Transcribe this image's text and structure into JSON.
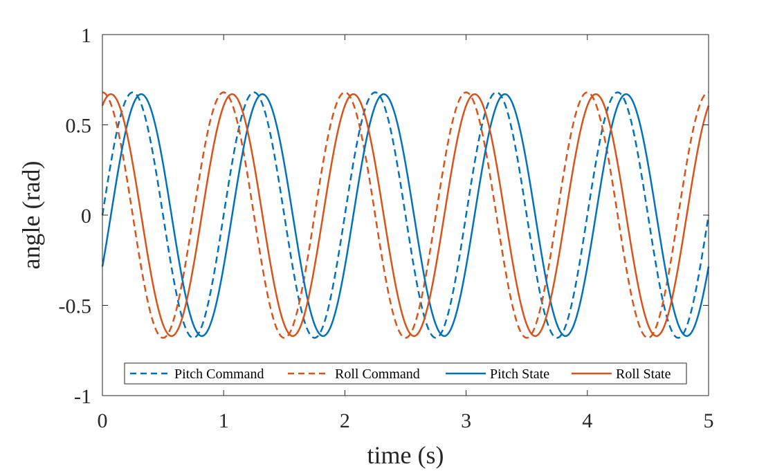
{
  "chart_data": {
    "type": "line",
    "title": "",
    "xlabel": "time (s)",
    "ylabel": "angle (rad)",
    "xlim": [
      0,
      5
    ],
    "ylim": [
      -1,
      1
    ],
    "xticks": [
      0,
      1,
      2,
      3,
      4,
      5
    ],
    "xtick_labels": [
      "0",
      "1",
      "2",
      "3",
      "4",
      "5"
    ],
    "yticks": [
      -1,
      -0.5,
      0,
      0.5,
      1
    ],
    "ytick_labels": [
      "-1",
      "-0.5",
      "0",
      "0.5",
      "1"
    ],
    "grid": false,
    "legend_position": "bottom",
    "series": [
      {
        "name": "Pitch Command",
        "color": "#0072BD",
        "style": "dashed",
        "amplitude": 0.68,
        "period_s": 1.0,
        "phase_s": 0.0,
        "sample_x": [
          0,
          0.25,
          0.5,
          0.75,
          1.0
        ],
        "sample_y": [
          0,
          0.68,
          0,
          -0.68,
          0
        ]
      },
      {
        "name": "Roll Command",
        "color": "#D95319",
        "style": "dashed",
        "amplitude": 0.68,
        "period_s": 1.0,
        "phase_s": 0.25,
        "sample_x": [
          0,
          0.25,
          0.5,
          0.75,
          1.0
        ],
        "sample_y": [
          0.68,
          0,
          -0.68,
          0,
          0.68
        ]
      },
      {
        "name": "Pitch State",
        "color": "#0072BD",
        "style": "solid",
        "amplitude": 0.67,
        "period_s": 1.0,
        "phase_s": -0.07,
        "sample_x": [
          0.07,
          0.32,
          0.57,
          0.82,
          1.07
        ],
        "sample_y": [
          0,
          0.67,
          0,
          -0.67,
          0
        ]
      },
      {
        "name": "Roll State",
        "color": "#D95319",
        "style": "solid",
        "amplitude": 0.67,
        "period_s": 1.0,
        "phase_s": 0.18,
        "sample_x": [
          0.07,
          0.32,
          0.57,
          0.82,
          1.07
        ],
        "sample_y": [
          0.67,
          0,
          -0.67,
          0,
          0.67
        ]
      }
    ]
  }
}
